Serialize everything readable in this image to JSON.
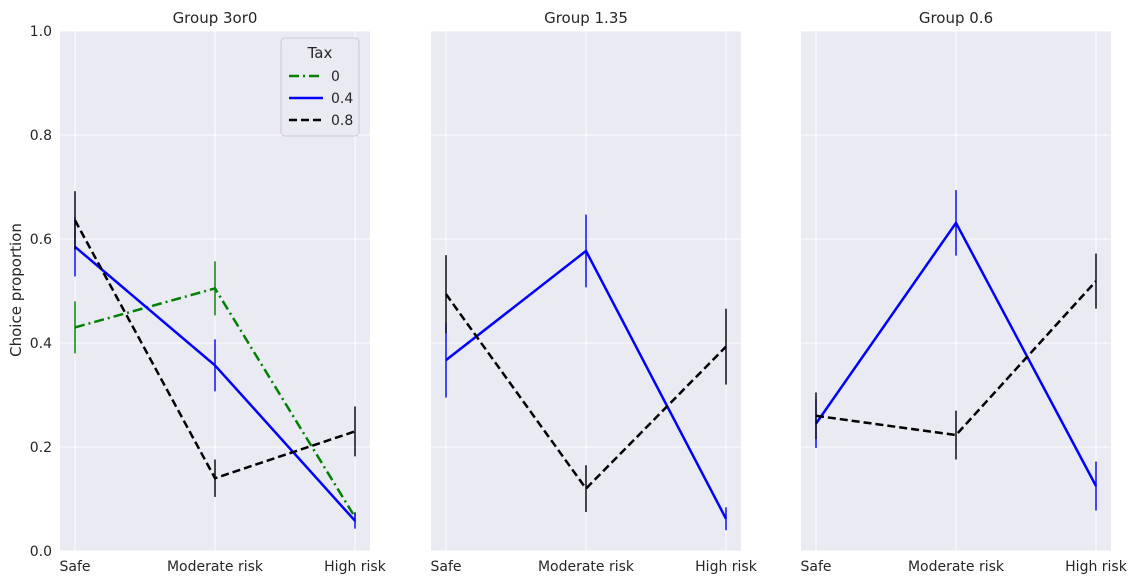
{
  "chart_data": {
    "type": "line",
    "ylabel": "Choice proportion",
    "ylim": [
      0,
      1
    ],
    "yticks": [
      "0.0",
      "0.2",
      "0.4",
      "0.6",
      "0.8",
      "1.0"
    ],
    "categories": [
      "Safe",
      "Moderate risk",
      "High risk"
    ],
    "grid": true,
    "legend": {
      "title": "Tax",
      "placement": "top-right of first panel",
      "entries": [
        {
          "name": "0",
          "color": "#008000",
          "dash": "dashdot"
        },
        {
          "name": "0.4",
          "color": "#0000ff",
          "dash": "solid"
        },
        {
          "name": "0.8",
          "color": "#000000",
          "dash": "dashed"
        }
      ]
    },
    "panels": [
      {
        "title": "Group 3or0",
        "series": [
          {
            "name": "0",
            "values": [
              0.43,
              0.505,
              0.065
            ],
            "error": [
              0.05,
              0.052,
              0.01
            ]
          },
          {
            "name": "0.4",
            "values": [
              0.585,
              0.357,
              0.058
            ],
            "error": [
              0.057,
              0.05,
              0.015
            ]
          },
          {
            "name": "0.8",
            "values": [
              0.636,
              0.14,
              0.23
            ],
            "error": [
              0.056,
              0.036,
              0.048
            ]
          }
        ]
      },
      {
        "title": "Group 1.35",
        "series": [
          {
            "name": "0.4",
            "values": [
              0.367,
              0.577,
              0.062
            ],
            "error": [
              0.072,
              0.07,
              0.022
            ]
          },
          {
            "name": "0.8",
            "values": [
              0.494,
              0.12,
              0.393
            ],
            "error": [
              0.075,
              0.045,
              0.073
            ]
          }
        ]
      },
      {
        "title": "Group 0.6",
        "series": [
          {
            "name": "0.4",
            "values": [
              0.245,
              0.631,
              0.125
            ],
            "error": [
              0.047,
              0.063,
              0.047
            ]
          },
          {
            "name": "0.8",
            "values": [
              0.26,
              0.223,
              0.519
            ],
            "error": [
              0.045,
              0.047,
              0.053
            ]
          }
        ]
      }
    ]
  },
  "colors": {
    "0": "#008000",
    "0.4": "#0000ff",
    "0.8": "#000000",
    "panel_background": "#eaeaf2"
  }
}
